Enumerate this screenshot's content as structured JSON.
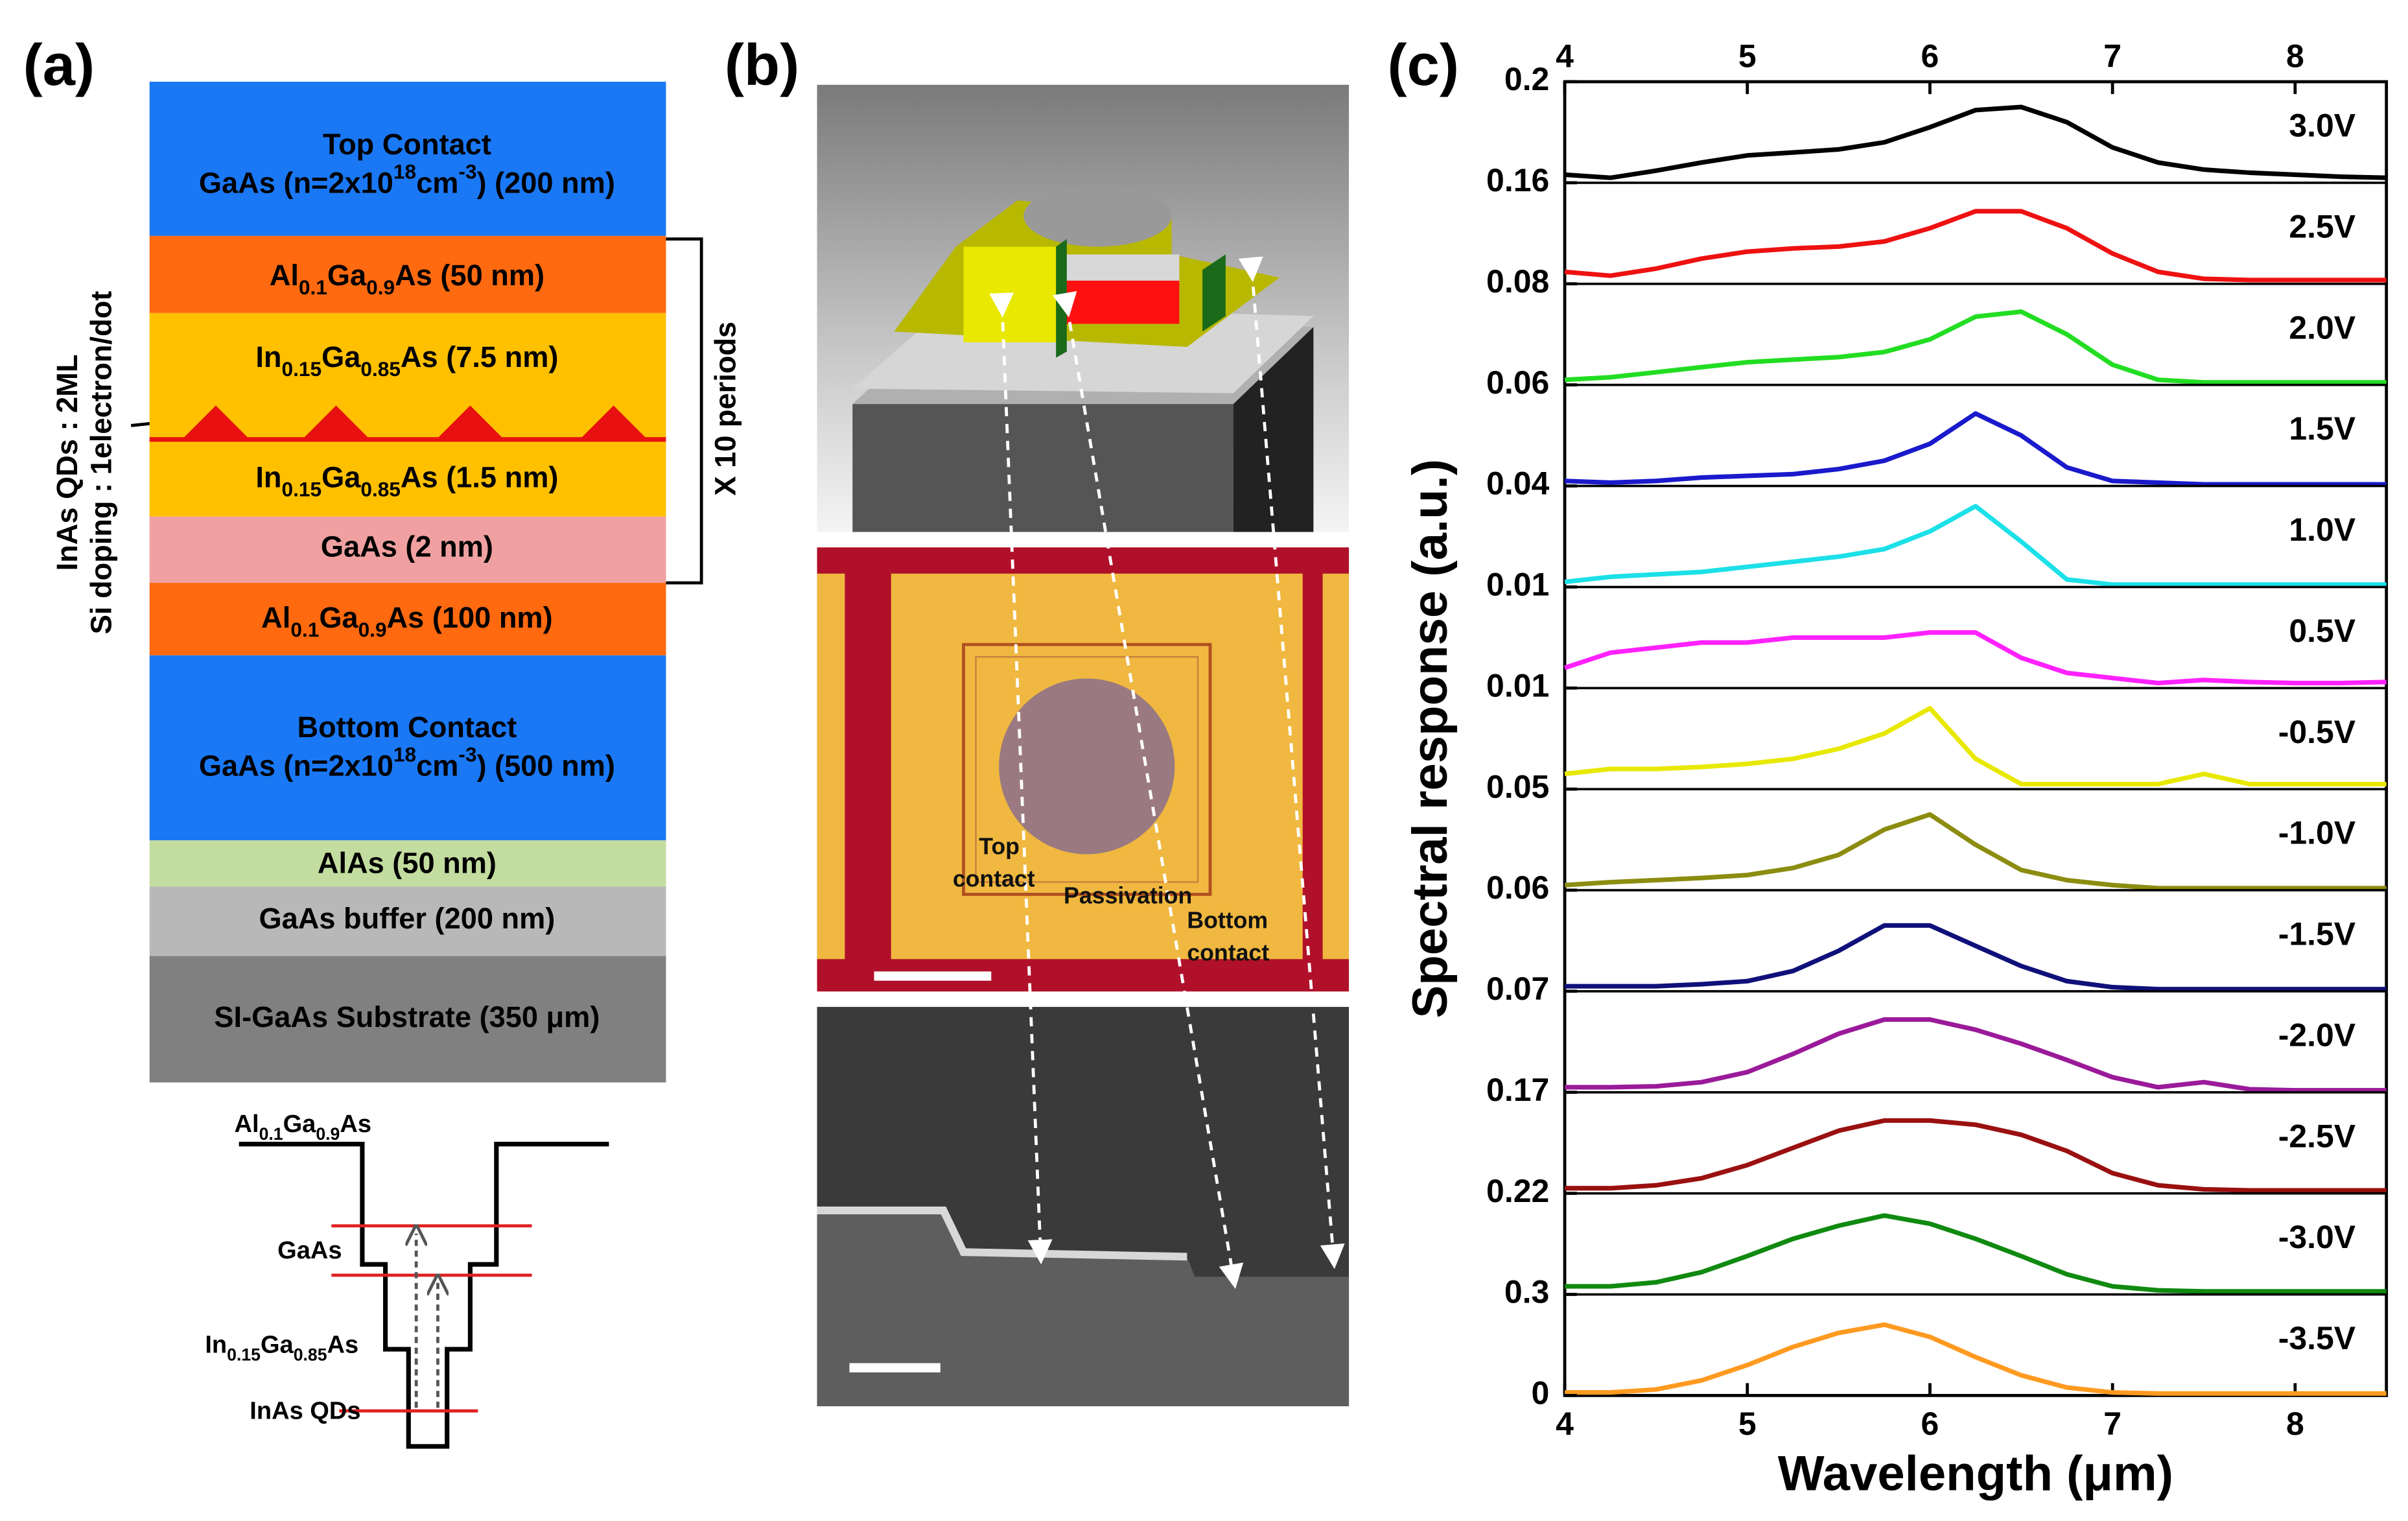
{
  "panel_a": {
    "label": "(a)",
    "layers": [
      {
        "lines": [
          [
            {
              "t": "Top Contact"
            }
          ],
          [
            {
              "t": "GaAs (n=2x10"
            },
            {
              "sup": "18"
            },
            {
              "t": "cm"
            },
            {
              "sup": "-3"
            },
            {
              "t": ")  (200 nm)"
            }
          ]
        ]
      },
      {
        "lines": [
          [
            {
              "t": "Al"
            },
            {
              "sub": "0.1"
            },
            {
              "t": "Ga"
            },
            {
              "sub": "0.9"
            },
            {
              "t": "As (50 nm)"
            }
          ]
        ]
      },
      {
        "lines": [
          [
            {
              "t": "In"
            },
            {
              "sub": "0.15"
            },
            {
              "t": "Ga"
            },
            {
              "sub": "0.85"
            },
            {
              "t": "As  (7.5 nm)"
            }
          ]
        ]
      },
      {
        "lines": [
          [
            {
              "t": "In"
            },
            {
              "sub": "0.15"
            },
            {
              "t": "Ga"
            },
            {
              "sub": "0.85"
            },
            {
              "t": "As  (1.5 nm)"
            }
          ]
        ]
      },
      {
        "lines": [
          [
            {
              "t": "GaAs  (2 nm)"
            }
          ]
        ]
      },
      {
        "lines": [
          [
            {
              "t": "Al"
            },
            {
              "sub": "0.1"
            },
            {
              "t": "Ga"
            },
            {
              "sub": "0.9"
            },
            {
              "t": "As (100 nm)"
            }
          ]
        ]
      },
      {
        "lines": [
          [
            {
              "t": "Bottom Contact"
            }
          ],
          [
            {
              "t": "GaAs (n=2x10"
            },
            {
              "sup": "18"
            },
            {
              "t": "cm"
            },
            {
              "sup": "-3"
            },
            {
              "t": ")  (500 nm)"
            }
          ]
        ]
      },
      {
        "lines": [
          [
            {
              "t": "AlAs  (50 nm)"
            }
          ]
        ]
      },
      {
        "lines": [
          [
            {
              "t": "GaAs buffer (200 nm)"
            }
          ]
        ]
      },
      {
        "lines": [
          [
            {
              "t": "SI-GaAs Substrate (350 μm)"
            }
          ]
        ]
      }
    ],
    "periods": "X 10 periods",
    "side_note": [
      "InAs QDs : 2ML",
      "Si doping : 1electron/dot"
    ],
    "band_labels": [
      [
        {
          "t": "Al"
        },
        {
          "sub": "0.1"
        },
        {
          "t": "Ga"
        },
        {
          "sub": "0.9"
        },
        {
          "t": "As"
        }
      ],
      [
        {
          "t": "GaAs"
        }
      ],
      [
        {
          "t": "In"
        },
        {
          "sub": "0.15"
        },
        {
          "t": "Ga"
        },
        {
          "sub": "0.85"
        },
        {
          "t": "As"
        }
      ],
      [
        {
          "t": "InAs QDs"
        }
      ]
    ]
  },
  "panel_b": {
    "label": "(b)",
    "annotations": [
      {
        "lines": [
          "Top",
          "contact"
        ]
      },
      {
        "lines": [
          "Passivation"
        ]
      },
      {
        "lines": [
          "Bottom",
          "contact"
        ]
      }
    ]
  },
  "chart_data": {
    "type": "line",
    "label": "(c)",
    "xlabel": "Wavelength (μm)",
    "ylabel": "Spectral response (a.u.)",
    "x": [
      4,
      4.25,
      4.5,
      4.75,
      5,
      5.25,
      5.5,
      5.75,
      6,
      6.25,
      6.5,
      6.75,
      7,
      7.25,
      7.5,
      7.75,
      8,
      8.25,
      8.5
    ],
    "xlim": [
      4,
      8.5
    ],
    "xticks": [
      4,
      5,
      6,
      7,
      8
    ],
    "series": [
      {
        "name": "3.0V",
        "color": "#000000",
        "ylim": [
          0,
          0.2
        ],
        "yticks": [
          0.2
        ],
        "values": [
          0.016,
          0.01,
          0.024,
          0.04,
          0.054,
          0.06,
          0.066,
          0.08,
          0.11,
          0.144,
          0.15,
          0.12,
          0.07,
          0.04,
          0.026,
          0.02,
          0.016,
          0.012,
          0.01
        ]
      },
      {
        "name": "2.5V",
        "color": "#ee1111",
        "ylim": [
          0,
          0.16
        ],
        "yticks": [
          0.16
        ],
        "values": [
          0.019,
          0.013,
          0.024,
          0.04,
          0.051,
          0.056,
          0.059,
          0.067,
          0.088,
          0.115,
          0.115,
          0.088,
          0.048,
          0.019,
          0.008,
          0.006,
          0.006,
          0.006,
          0.006
        ]
      },
      {
        "name": "2.0V",
        "color": "#22dd22",
        "ylim": [
          0,
          0.08
        ],
        "yticks": [
          0.08
        ],
        "values": [
          0.004,
          0.006,
          0.01,
          0.014,
          0.018,
          0.02,
          0.022,
          0.026,
          0.036,
          0.054,
          0.058,
          0.04,
          0.016,
          0.004,
          0.002,
          0.002,
          0.002,
          0.002,
          0.002
        ]
      },
      {
        "name": "1.5V",
        "color": "#1a1acc",
        "ylim": [
          0,
          0.06
        ],
        "yticks": [
          0.06
        ],
        "values": [
          0.003,
          0.002,
          0.003,
          0.005,
          0.006,
          0.007,
          0.01,
          0.015,
          0.025,
          0.043,
          0.03,
          0.011,
          0.003,
          0.002,
          0.001,
          0.001,
          0.001,
          0.001,
          0.001
        ]
      },
      {
        "name": "1.0V",
        "color": "#1ce0e8",
        "ylim": [
          0,
          0.04
        ],
        "yticks": [
          0.04
        ],
        "values": [
          0.002,
          0.004,
          0.005,
          0.006,
          0.008,
          0.01,
          0.012,
          0.015,
          0.022,
          0.032,
          0.018,
          0.003,
          0.001,
          0.001,
          0.001,
          0.001,
          0.001,
          0.001,
          0.001
        ]
      },
      {
        "name": "0.5V",
        "color": "#ff22ff",
        "ylim": [
          0,
          0.01
        ],
        "yticks": [
          0.01
        ],
        "values": [
          0.002,
          0.0035,
          0.004,
          0.0045,
          0.0045,
          0.005,
          0.005,
          0.005,
          0.0055,
          0.0055,
          0.003,
          0.0015,
          0.001,
          0.0005,
          0.0008,
          0.0006,
          0.0005,
          0.0005,
          0.0006
        ]
      },
      {
        "name": "-0.5V",
        "color": "#e8e800",
        "ylim": [
          0,
          0.01
        ],
        "yticks": [
          0.01
        ],
        "values": [
          0.0015,
          0.002,
          0.002,
          0.0022,
          0.0025,
          0.003,
          0.004,
          0.0055,
          0.008,
          0.003,
          0.0005,
          0.0005,
          0.0005,
          0.0005,
          0.0015,
          0.0005,
          0.0005,
          0.0005,
          0.0005
        ]
      },
      {
        "name": "-1.0V",
        "color": "#8c8c10",
        "ylim": [
          0,
          0.05
        ],
        "yticks": [
          0.05
        ],
        "values": [
          0.0025,
          0.004,
          0.005,
          0.006,
          0.0075,
          0.011,
          0.0175,
          0.03,
          0.0375,
          0.0225,
          0.01,
          0.005,
          0.0025,
          0.001,
          0.001,
          0.001,
          0.001,
          0.001,
          0.001
        ]
      },
      {
        "name": "-1.5V",
        "color": "#10107a",
        "ylim": [
          0,
          0.06
        ],
        "yticks": [
          0.06
        ],
        "values": [
          0.003,
          0.003,
          0.003,
          0.0042,
          0.006,
          0.012,
          0.024,
          0.039,
          0.039,
          0.027,
          0.015,
          0.006,
          0.0024,
          0.0012,
          0.0012,
          0.0012,
          0.0012,
          0.0012,
          0.0012
        ]
      },
      {
        "name": "-2.0V",
        "color": "#9a1a9a",
        "ylim": [
          0,
          0.07
        ],
        "yticks": [
          0.07
        ],
        "values": [
          0.0035,
          0.0035,
          0.0042,
          0.007,
          0.014,
          0.0266,
          0.0406,
          0.0504,
          0.0504,
          0.0434,
          0.0336,
          0.0224,
          0.0105,
          0.0035,
          0.007,
          0.0021,
          0.0014,
          0.0014,
          0.0014
        ]
      },
      {
        "name": "-2.5V",
        "color": "#9a1010",
        "ylim": [
          0,
          0.17
        ],
        "yticks": [
          0.17
        ],
        "values": [
          0.0085,
          0.0085,
          0.0136,
          0.0255,
          0.0476,
          0.0765,
          0.1054,
          0.1224,
          0.1224,
          0.1156,
          0.0986,
          0.0714,
          0.034,
          0.0136,
          0.0068,
          0.0051,
          0.0051,
          0.0051,
          0.0051
        ]
      },
      {
        "name": "-3.0V",
        "color": "#108a10",
        "ylim": [
          0,
          0.22
        ],
        "yticks": [
          0.22
        ],
        "values": [
          0.0176,
          0.0176,
          0.0264,
          0.0484,
          0.0836,
          0.121,
          0.1496,
          0.1716,
          0.154,
          0.121,
          0.0836,
          0.044,
          0.0176,
          0.0088,
          0.0066,
          0.0066,
          0.0066,
          0.0066,
          0.0066
        ]
      },
      {
        "name": "-3.5V",
        "color": "#ff9a20",
        "ylim": [
          0,
          0.3
        ],
        "yticks": [
          0,
          0.3
        ],
        "values": [
          0.009,
          0.009,
          0.018,
          0.045,
          0.09,
          0.144,
          0.186,
          0.21,
          0.174,
          0.114,
          0.06,
          0.024,
          0.009,
          0.006,
          0.006,
          0.006,
          0.006,
          0.006,
          0.006
        ]
      }
    ]
  }
}
